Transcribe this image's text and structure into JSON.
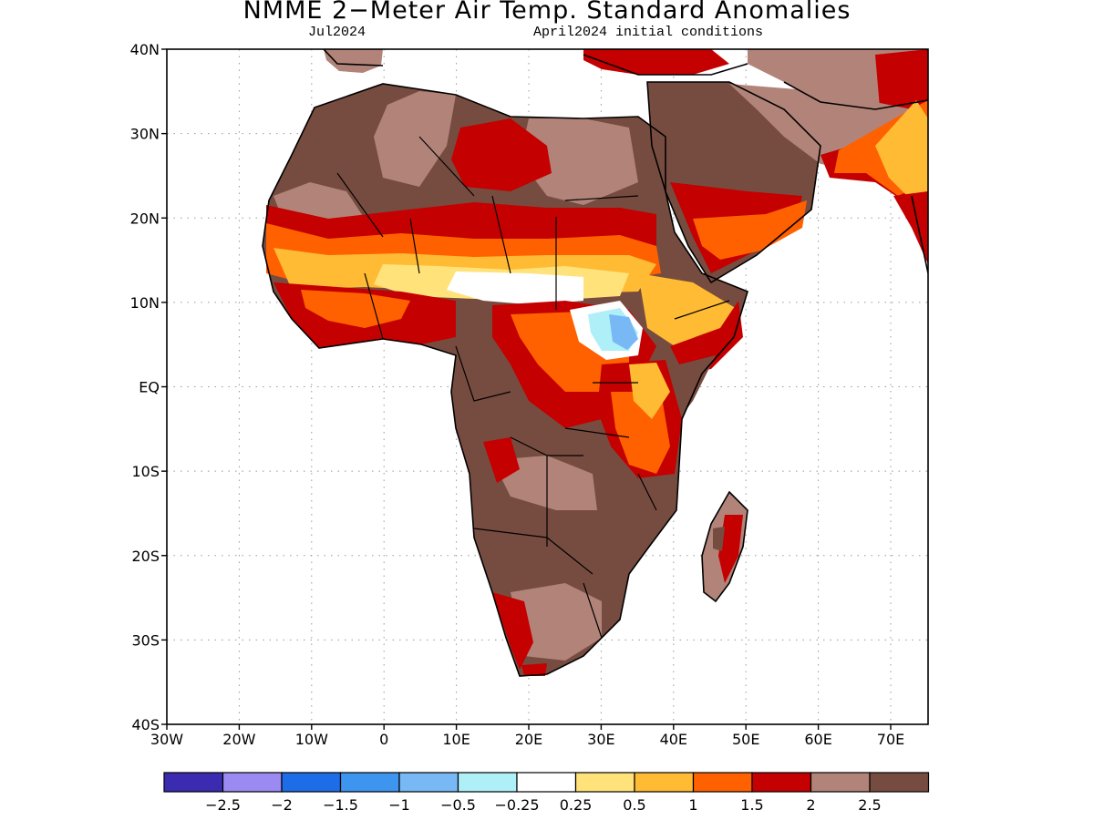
{
  "title": "NMME 2−Meter Air Temp. Standard Anomalies",
  "subtitle_left": "Jul2024",
  "subtitle_right": "April2024 initial conditions",
  "axes": {
    "lat_ticks": [
      "40N",
      "30N",
      "20N",
      "10N",
      "EQ",
      "10S",
      "20S",
      "30S",
      "40S"
    ],
    "lon_ticks": [
      "30W",
      "20W",
      "10W",
      "0",
      "10E",
      "20E",
      "30E",
      "40E",
      "50E",
      "60E",
      "70E"
    ]
  },
  "legend": {
    "bins": [
      {
        "color": "#3a2bb0",
        "name": "lt -2.5"
      },
      {
        "color": "#9a8af2",
        "name": "-2.5 to -2"
      },
      {
        "color": "#1e6de8",
        "name": "-2 to -1.5"
      },
      {
        "color": "#3e95ef",
        "name": "-1.5 to -1"
      },
      {
        "color": "#78b8f5",
        "name": "-1 to -0.5"
      },
      {
        "color": "#aeeff8",
        "name": "-0.5 to -0.25"
      },
      {
        "color": "#ffffff",
        "name": "-0.25 to 0.25"
      },
      {
        "color": "#ffe37a",
        "name": "0.25 to 0.5"
      },
      {
        "color": "#ffbb33",
        "name": "0.5 to 1"
      },
      {
        "color": "#ff6000",
        "name": "1 to 1.5"
      },
      {
        "color": "#c40000",
        "name": "1.5 to 2"
      },
      {
        "color": "#b28479",
        "name": "2 to 2.5"
      },
      {
        "color": "#774c40",
        "name": "gt 2.5"
      }
    ],
    "labels": [
      "−2.5",
      "−2",
      "−1.5",
      "−1",
      "−0.5",
      "−0.25",
      "0.25",
      "0.5",
      "1",
      "1.5",
      "2",
      "2.5"
    ]
  }
}
